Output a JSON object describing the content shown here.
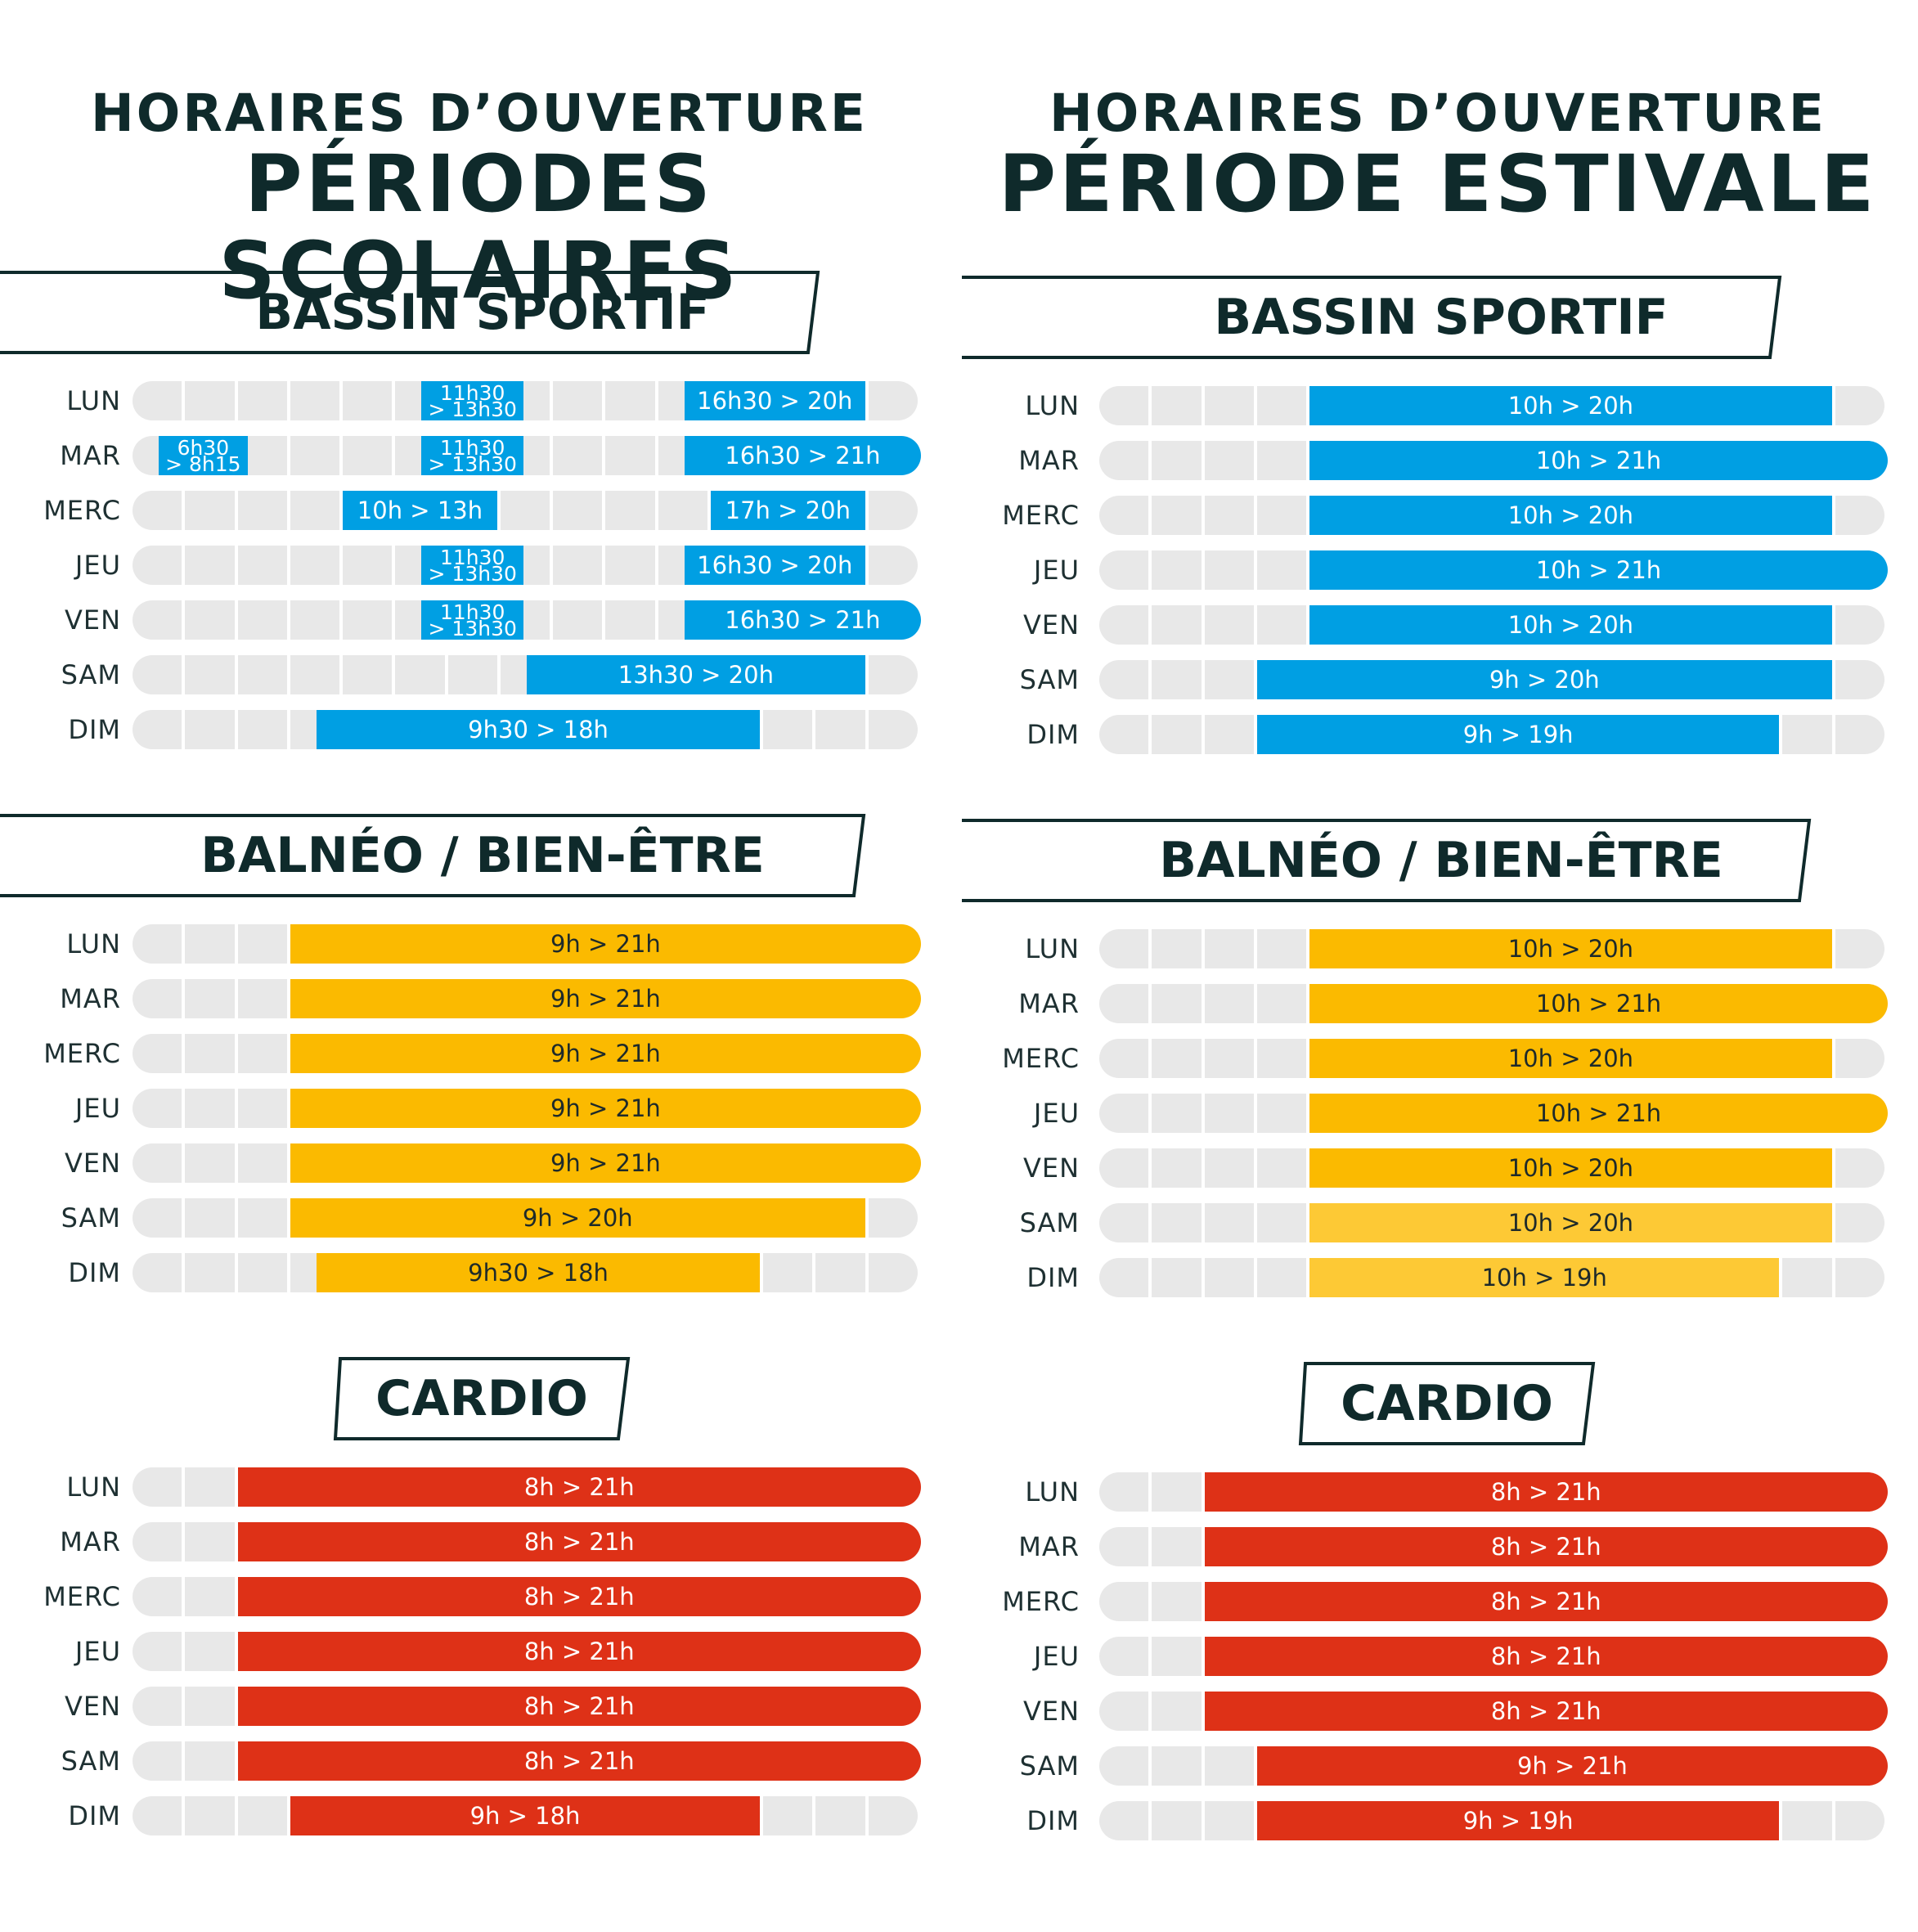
{
  "colors": {
    "pool": "#009fe3",
    "balneo": "#fbba00",
    "balneo_light": "#fdc935",
    "cardio": "#de3117",
    "empty": "#e8e8e8",
    "dark": "#0f2a2b"
  },
  "columns": [
    {
      "subtitle": "HORAIRES D’OUVERTURE",
      "title": "PÉRIODES SCOLAIRES",
      "sections": [
        {
          "label": "BASSIN SPORTIF",
          "kind": "pool",
          "rows": [
            {
              "day": "LUN",
              "segments": [
                {
                  "from": 11.5,
                  "to": 13.5,
                  "label": "11h30\n> 13h30"
                },
                {
                  "from": 16.5,
                  "to": 20,
                  "label": "16h30 > 20h"
                }
              ]
            },
            {
              "day": "MAR",
              "segments": [
                {
                  "from": 6.5,
                  "to": 8.25,
                  "label": "6h30\n> 8h15"
                },
                {
                  "from": 11.5,
                  "to": 13.5,
                  "label": "11h30\n> 13h30"
                },
                {
                  "from": 16.5,
                  "to": 21,
                  "label": "16h30 > 21h"
                }
              ]
            },
            {
              "day": "MERC",
              "segments": [
                {
                  "from": 10,
                  "to": 13,
                  "label": "10h > 13h"
                },
                {
                  "from": 17,
                  "to": 20,
                  "label": "17h > 20h"
                }
              ]
            },
            {
              "day": "JEU",
              "segments": [
                {
                  "from": 11.5,
                  "to": 13.5,
                  "label": "11h30\n> 13h30"
                },
                {
                  "from": 16.5,
                  "to": 20,
                  "label": "16h30 > 20h"
                }
              ]
            },
            {
              "day": "VEN",
              "segments": [
                {
                  "from": 11.5,
                  "to": 13.5,
                  "label": "11h30\n> 13h30"
                },
                {
                  "from": 16.5,
                  "to": 21,
                  "label": "16h30 > 21h"
                }
              ]
            },
            {
              "day": "SAM",
              "segments": [
                {
                  "from": 13.5,
                  "to": 20,
                  "label": "13h30 > 20h"
                }
              ]
            },
            {
              "day": "DIM",
              "segments": [
                {
                  "from": 9.5,
                  "to": 18,
                  "label": "9h30 > 18h"
                }
              ]
            }
          ]
        },
        {
          "label": "BALNÉO / BIEN-ÊTRE",
          "kind": "balneo",
          "rows": [
            {
              "day": "LUN",
              "segments": [
                {
                  "from": 9,
                  "to": 21,
                  "label": "9h > 21h"
                }
              ]
            },
            {
              "day": "MAR",
              "segments": [
                {
                  "from": 9,
                  "to": 21,
                  "label": "9h > 21h"
                }
              ]
            },
            {
              "day": "MERC",
              "segments": [
                {
                  "from": 9,
                  "to": 21,
                  "label": "9h > 21h"
                }
              ]
            },
            {
              "day": "JEU",
              "segments": [
                {
                  "from": 9,
                  "to": 21,
                  "label": "9h > 21h"
                }
              ]
            },
            {
              "day": "VEN",
              "segments": [
                {
                  "from": 9,
                  "to": 21,
                  "label": "9h > 21h"
                }
              ]
            },
            {
              "day": "SAM",
              "segments": [
                {
                  "from": 9,
                  "to": 20,
                  "label": "9h > 20h"
                }
              ]
            },
            {
              "day": "DIM",
              "segments": [
                {
                  "from": 9.5,
                  "to": 18,
                  "label": "9h30 > 18h"
                }
              ]
            }
          ]
        },
        {
          "label": "CARDIO",
          "kind": "cardio",
          "rows": [
            {
              "day": "LUN",
              "segments": [
                {
                  "from": 8,
                  "to": 21,
                  "label": "8h > 21h"
                }
              ]
            },
            {
              "day": "MAR",
              "segments": [
                {
                  "from": 8,
                  "to": 21,
                  "label": "8h > 21h"
                }
              ]
            },
            {
              "day": "MERC",
              "segments": [
                {
                  "from": 8,
                  "to": 21,
                  "label": "8h > 21h"
                }
              ]
            },
            {
              "day": "JEU",
              "segments": [
                {
                  "from": 8,
                  "to": 21,
                  "label": "8h > 21h"
                }
              ]
            },
            {
              "day": "VEN",
              "segments": [
                {
                  "from": 8,
                  "to": 21,
                  "label": "8h > 21h"
                }
              ]
            },
            {
              "day": "SAM",
              "segments": [
                {
                  "from": 8,
                  "to": 21,
                  "label": "8h > 21h"
                }
              ]
            },
            {
              "day": "DIM",
              "segments": [
                {
                  "from": 9,
                  "to": 18,
                  "label": "9h > 18h"
                }
              ]
            }
          ]
        }
      ]
    },
    {
      "subtitle": "HORAIRES D’OUVERTURE",
      "title": "PÉRIODE ESTIVALE",
      "sections": [
        {
          "label": "BASSIN SPORTIF",
          "kind": "pool",
          "rows": [
            {
              "day": "LUN",
              "segments": [
                {
                  "from": 10,
                  "to": 20,
                  "label": "10h > 20h"
                }
              ]
            },
            {
              "day": "MAR",
              "segments": [
                {
                  "from": 10,
                  "to": 21,
                  "label": "10h > 21h"
                }
              ]
            },
            {
              "day": "MERC",
              "segments": [
                {
                  "from": 10,
                  "to": 20,
                  "label": "10h > 20h"
                }
              ]
            },
            {
              "day": "JEU",
              "segments": [
                {
                  "from": 10,
                  "to": 21,
                  "label": "10h > 21h"
                }
              ]
            },
            {
              "day": "VEN",
              "segments": [
                {
                  "from": 10,
                  "to": 20,
                  "label": "10h > 20h"
                }
              ]
            },
            {
              "day": "SAM",
              "segments": [
                {
                  "from": 9,
                  "to": 20,
                  "label": "9h > 20h"
                }
              ]
            },
            {
              "day": "DIM",
              "segments": [
                {
                  "from": 9,
                  "to": 19,
                  "label": "9h > 19h"
                }
              ]
            }
          ]
        },
        {
          "label": "BALNÉO / BIEN-ÊTRE",
          "kind": "balneo",
          "rows": [
            {
              "day": "LUN",
              "segments": [
                {
                  "from": 10,
                  "to": 20,
                  "label": "10h > 20h"
                }
              ]
            },
            {
              "day": "MAR",
              "segments": [
                {
                  "from": 10,
                  "to": 21,
                  "label": "10h > 21h"
                }
              ]
            },
            {
              "day": "MERC",
              "segments": [
                {
                  "from": 10,
                  "to": 20,
                  "label": "10h > 20h"
                }
              ]
            },
            {
              "day": "JEU",
              "segments": [
                {
                  "from": 10,
                  "to": 21,
                  "label": "10h > 21h"
                }
              ]
            },
            {
              "day": "VEN",
              "segments": [
                {
                  "from": 10,
                  "to": 20,
                  "label": "10h > 20h"
                }
              ]
            },
            {
              "day": "SAM",
              "segments": [
                {
                  "from": 10,
                  "to": 20,
                  "label": "10h > 20h",
                  "light": true
                }
              ]
            },
            {
              "day": "DIM",
              "segments": [
                {
                  "from": 10,
                  "to": 19,
                  "label": "10h > 19h",
                  "light": true
                }
              ]
            }
          ]
        },
        {
          "label": "CARDIO",
          "kind": "cardio",
          "rows": [
            {
              "day": "LUN",
              "segments": [
                {
                  "from": 8,
                  "to": 21,
                  "label": "8h > 21h"
                }
              ]
            },
            {
              "day": "MAR",
              "segments": [
                {
                  "from": 8,
                  "to": 21,
                  "label": "8h > 21h"
                }
              ]
            },
            {
              "day": "MERC",
              "segments": [
                {
                  "from": 8,
                  "to": 21,
                  "label": "8h > 21h"
                }
              ]
            },
            {
              "day": "JEU",
              "segments": [
                {
                  "from": 8,
                  "to": 21,
                  "label": "8h > 21h"
                }
              ]
            },
            {
              "day": "VEN",
              "segments": [
                {
                  "from": 8,
                  "to": 21,
                  "label": "8h > 21h"
                }
              ]
            },
            {
              "day": "SAM",
              "segments": [
                {
                  "from": 9,
                  "to": 21,
                  "label": "9h > 21h"
                }
              ]
            },
            {
              "day": "DIM",
              "segments": [
                {
                  "from": 9,
                  "to": 19,
                  "label": "9h > 19h"
                }
              ]
            }
          ]
        }
      ]
    }
  ]
}
